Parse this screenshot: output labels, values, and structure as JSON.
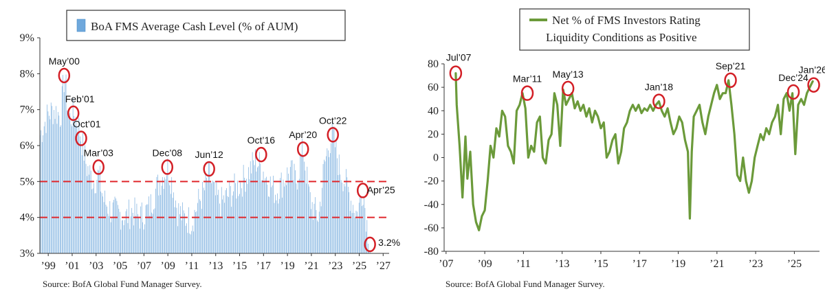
{
  "chart_data": [
    {
      "type": "bar",
      "title": "BoA FMS Average Cash Level (% of AUM)",
      "legend": "BoA FMS Average Cash Level (% of AUM)",
      "source": "Source: BofA Global Fund Manager Survey.",
      "ylim": [
        3,
        9
      ],
      "y_ticks": [
        "3%",
        "4%",
        "5%",
        "6%",
        "7%",
        "8%",
        "9%"
      ],
      "y_tick_values": [
        3,
        4,
        5,
        6,
        7,
        8,
        9
      ],
      "x_ticks": [
        "’99",
        "’01",
        "’03",
        "’05",
        "’07",
        "’09",
        "’11",
        "’13",
        "’15",
        "’17",
        "’19",
        "’21",
        "’23",
        "’25",
        "’27"
      ],
      "x_tick_years": [
        1999,
        2001,
        2003,
        2005,
        2007,
        2009,
        2011,
        2013,
        2015,
        2017,
        2019,
        2021,
        2023,
        2025,
        2027
      ],
      "xlim": [
        1998.3,
        2027.5
      ],
      "reference_lines": [
        5,
        4
      ],
      "series_anchors": {
        "t": [
          1998.3,
          1999.0,
          1999.5,
          2000.0,
          2000.35,
          2000.7,
          2001.1,
          2001.5,
          2001.75,
          2002.2,
          2002.8,
          2003.2,
          2003.6,
          2004.2,
          2005.0,
          2005.5,
          2006.0,
          2006.5,
          2007.0,
          2007.5,
          2008.0,
          2008.5,
          2008.95,
          2009.4,
          2009.8,
          2010.3,
          2011.0,
          2011.5,
          2012.0,
          2012.45,
          2012.9,
          2013.4,
          2014.0,
          2014.6,
          2015.2,
          2015.8,
          2016.3,
          2016.8,
          2017.4,
          2018.0,
          2018.6,
          2019.2,
          2019.7,
          2020.3,
          2020.8,
          2021.2,
          2021.6,
          2022.0,
          2022.4,
          2022.8,
          2023.3,
          2023.8,
          2024.3,
          2024.8,
          2025.3,
          2025.6,
          2025.9
        ],
        "v": [
          6.3,
          6.9,
          7.0,
          6.8,
          8.0,
          6.7,
          6.9,
          6.6,
          6.2,
          5.4,
          5.0,
          5.2,
          4.5,
          4.2,
          4.1,
          4.0,
          4.2,
          4.0,
          4.1,
          4.3,
          4.8,
          5.1,
          5.4,
          4.9,
          4.2,
          4.0,
          3.9,
          4.4,
          4.7,
          5.2,
          4.6,
          4.4,
          4.6,
          4.8,
          5.0,
          5.3,
          5.6,
          5.4,
          5.0,
          4.7,
          5.0,
          5.3,
          5.0,
          5.9,
          4.6,
          4.2,
          4.0,
          5.3,
          6.0,
          6.3,
          5.4,
          5.0,
          4.5,
          4.1,
          4.8,
          3.9,
          3.2
        ]
      },
      "annotations": [
        {
          "label": "May’00",
          "year": 2000.33,
          "value": 7.95
        },
        {
          "label": "Feb’01",
          "year": 2001.1,
          "value": 6.9
        },
        {
          "label": "Oct’01",
          "year": 2001.75,
          "value": 6.2
        },
        {
          "label": "Mar’03",
          "year": 2003.2,
          "value": 5.4
        },
        {
          "label": "Dec’08",
          "year": 2008.95,
          "value": 5.4
        },
        {
          "label": "Jun’12",
          "year": 2012.45,
          "value": 5.35
        },
        {
          "label": "Oct’16",
          "year": 2016.8,
          "value": 5.75
        },
        {
          "label": "Apr’20",
          "year": 2020.3,
          "value": 5.9
        },
        {
          "label": "Oct’22",
          "year": 2022.8,
          "value": 6.3
        },
        {
          "label": "Apr’25",
          "year": 2025.3,
          "value": 4.75
        },
        {
          "label": "3.2%",
          "year": 2025.9,
          "value": 3.25
        }
      ]
    },
    {
      "type": "line",
      "title": "Net % of FMS Investors Rating Liquidity Conditions as Positive",
      "legend_line1": "Net % of FMS Investors Rating",
      "legend_line2": "Liquidity Conditions as Positive",
      "source": "Source: BofA Global Fund Manager Survey.",
      "color": "#6b9a3a",
      "ylim": [
        -80,
        80
      ],
      "y_ticks": [
        "-80",
        "-60",
        "-40",
        "-20",
        "0",
        "20",
        "40",
        "60",
        "80"
      ],
      "y_tick_values": [
        -80,
        -60,
        -40,
        -20,
        0,
        20,
        40,
        60,
        80
      ],
      "x_ticks": [
        "’07",
        "’09",
        "’11",
        "’13",
        "’15",
        "’17",
        "’19",
        "’21",
        "’23",
        "’25"
      ],
      "x_tick_years": [
        2007,
        2009,
        2011,
        2013,
        2015,
        2017,
        2019,
        2021,
        2023,
        2025
      ],
      "xlim": [
        2006.9,
        2026.3
      ],
      "x": [
        2007.5,
        2007.55,
        2007.7,
        2007.85,
        2008.0,
        2008.1,
        2008.25,
        2008.4,
        2008.55,
        2008.7,
        2008.85,
        2009.0,
        2009.15,
        2009.3,
        2009.45,
        2009.6,
        2009.75,
        2009.9,
        2010.05,
        2010.2,
        2010.35,
        2010.5,
        2010.65,
        2010.8,
        2010.95,
        2011.1,
        2011.25,
        2011.4,
        2011.55,
        2011.7,
        2011.85,
        2012.0,
        2012.15,
        2012.3,
        2012.45,
        2012.6,
        2012.75,
        2012.9,
        2013.05,
        2013.2,
        2013.35,
        2013.5,
        2013.65,
        2013.8,
        2013.95,
        2014.1,
        2014.25,
        2014.4,
        2014.55,
        2014.7,
        2014.85,
        2015.0,
        2015.15,
        2015.3,
        2015.45,
        2015.6,
        2015.75,
        2015.9,
        2016.05,
        2016.2,
        2016.35,
        2016.5,
        2016.65,
        2016.8,
        2016.95,
        2017.1,
        2017.25,
        2017.4,
        2017.55,
        2017.7,
        2017.85,
        2018.0,
        2018.15,
        2018.3,
        2018.45,
        2018.6,
        2018.75,
        2018.9,
        2019.05,
        2019.2,
        2019.35,
        2019.5,
        2019.6,
        2019.7,
        2019.8,
        2019.95,
        2020.1,
        2020.25,
        2020.4,
        2020.55,
        2020.7,
        2020.85,
        2021.0,
        2021.15,
        2021.3,
        2021.45,
        2021.6,
        2021.75,
        2021.9,
        2022.05,
        2022.2,
        2022.35,
        2022.5,
        2022.65,
        2022.8,
        2022.95,
        2023.1,
        2023.25,
        2023.4,
        2023.55,
        2023.7,
        2023.85,
        2024.0,
        2024.15,
        2024.3,
        2024.45,
        2024.6,
        2024.75,
        2024.9,
        2025.05,
        2025.2,
        2025.35,
        2025.5,
        2025.65,
        2025.8,
        2025.95
      ],
      "values": [
        72,
        45,
        10,
        -34,
        18,
        -18,
        5,
        -40,
        -55,
        -62,
        -50,
        -45,
        -20,
        10,
        0,
        25,
        18,
        40,
        35,
        10,
        5,
        -5,
        40,
        45,
        55,
        42,
        0,
        10,
        5,
        30,
        35,
        0,
        -5,
        15,
        20,
        55,
        45,
        10,
        58,
        45,
        50,
        55,
        42,
        48,
        40,
        45,
        35,
        42,
        30,
        40,
        35,
        25,
        30,
        0,
        5,
        15,
        20,
        -5,
        5,
        25,
        30,
        40,
        45,
        40,
        45,
        38,
        42,
        40,
        45,
        40,
        45,
        48,
        40,
        35,
        42,
        30,
        20,
        25,
        35,
        30,
        15,
        5,
        -52,
        5,
        35,
        40,
        45,
        30,
        20,
        35,
        45,
        55,
        62,
        50,
        55,
        55,
        66,
        45,
        20,
        -15,
        -20,
        0,
        -20,
        -30,
        -20,
        0,
        10,
        20,
        15,
        25,
        20,
        30,
        35,
        45,
        20,
        50,
        55,
        40,
        55,
        3,
        45,
        50,
        45,
        55,
        60,
        65
      ],
      "annotations": [
        {
          "label": "Jul’07",
          "year": 2007.5,
          "value": 72
        },
        {
          "label": "Mar’11",
          "year": 2011.2,
          "value": 55
        },
        {
          "label": "May’13",
          "year": 2013.3,
          "value": 59
        },
        {
          "label": "Jan’18",
          "year": 2018.0,
          "value": 48
        },
        {
          "label": "Sep’21",
          "year": 2021.7,
          "value": 66
        },
        {
          "label": "Dec’24",
          "year": 2024.95,
          "value": 56
        },
        {
          "label": "Jan’26",
          "year": 2026.0,
          "value": 62
        }
      ]
    }
  ]
}
